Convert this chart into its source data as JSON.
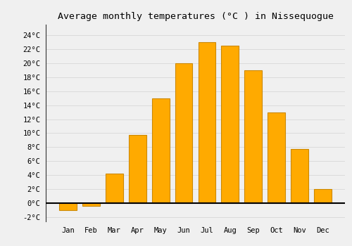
{
  "months": [
    "Jan",
    "Feb",
    "Mar",
    "Apr",
    "May",
    "Jun",
    "Jul",
    "Aug",
    "Sep",
    "Oct",
    "Nov",
    "Dec"
  ],
  "values": [
    -1.0,
    -0.4,
    4.2,
    9.7,
    15.0,
    20.0,
    23.0,
    22.5,
    19.0,
    13.0,
    7.7,
    2.0
  ],
  "bar_color": "#FFAA00",
  "bar_edge_color": "#CC8800",
  "title": "Average monthly temperatures (°C ) in Nissequogue",
  "ylim": [
    -2.6,
    25.5
  ],
  "yticks": [
    -2,
    0,
    2,
    4,
    6,
    8,
    10,
    12,
    14,
    16,
    18,
    20,
    22,
    24
  ],
  "ytick_labels": [
    "-2°C",
    "0°C",
    "2°C",
    "4°C",
    "6°C",
    "8°C",
    "10°C",
    "12°C",
    "14°C",
    "16°C",
    "18°C",
    "20°C",
    "22°C",
    "24°C"
  ],
  "background_color": "#f0f0f0",
  "grid_color": "#d8d8d8",
  "title_fontsize": 9.5,
  "tick_fontsize": 7.5,
  "bar_width": 0.75,
  "zero_line_color": "#000000",
  "left_spine_color": "#333333"
}
